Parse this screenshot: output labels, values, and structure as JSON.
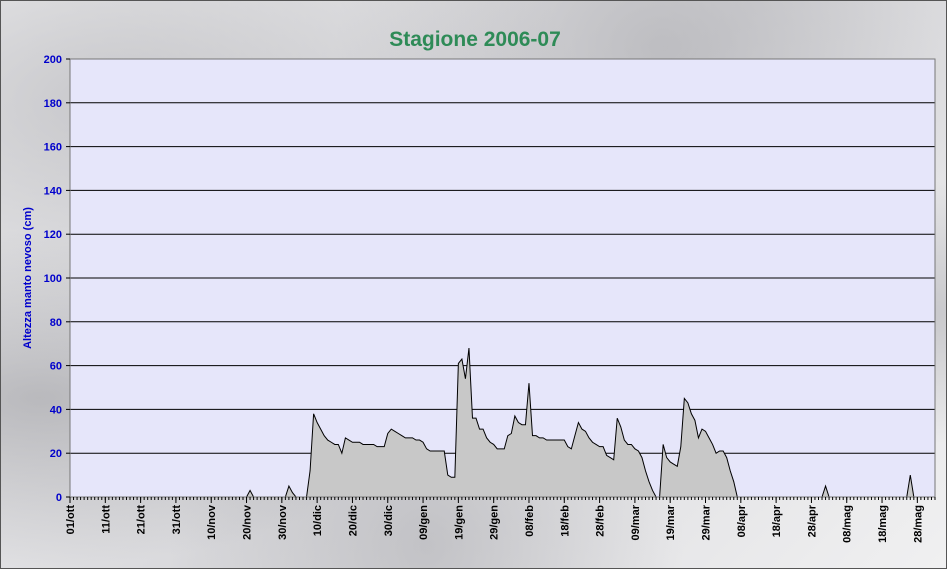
{
  "chart_data": {
    "type": "area",
    "title": "Stagione 2006-07",
    "xlabel": "",
    "ylabel": "Altezza manto nevoso (cm)",
    "ylim": [
      0,
      200
    ],
    "yticks": [
      0,
      20,
      40,
      60,
      80,
      100,
      120,
      140,
      160,
      180,
      200
    ],
    "xlim": [
      0,
      245
    ],
    "xticks": [
      {
        "day": 0,
        "label": "01/ott"
      },
      {
        "day": 10,
        "label": "11/ott"
      },
      {
        "day": 20,
        "label": "21/ott"
      },
      {
        "day": 30,
        "label": "31/ott"
      },
      {
        "day": 40,
        "label": "10/nov"
      },
      {
        "day": 50,
        "label": "20/nov"
      },
      {
        "day": 60,
        "label": "30/nov"
      },
      {
        "day": 70,
        "label": "10/dic"
      },
      {
        "day": 80,
        "label": "20/dic"
      },
      {
        "day": 90,
        "label": "30/dic"
      },
      {
        "day": 100,
        "label": "09/gen"
      },
      {
        "day": 110,
        "label": "19/gen"
      },
      {
        "day": 120,
        "label": "29/gen"
      },
      {
        "day": 130,
        "label": "08/feb"
      },
      {
        "day": 140,
        "label": "18/feb"
      },
      {
        "day": 150,
        "label": "28/feb"
      },
      {
        "day": 160,
        "label": "09/mar"
      },
      {
        "day": 170,
        "label": "19/mar"
      },
      {
        "day": 180,
        "label": "29/mar"
      },
      {
        "day": 190,
        "label": "08/apr"
      },
      {
        "day": 200,
        "label": "18/apr"
      },
      {
        "day": 210,
        "label": "28/apr"
      },
      {
        "day": 220,
        "label": "08/mag"
      },
      {
        "day": 230,
        "label": "18/mag"
      },
      {
        "day": 240,
        "label": "28/mag"
      }
    ],
    "grid": true,
    "colors": {
      "fill": "#c8c8c8",
      "line": "#000000",
      "plot_bg": "#e6e6fa",
      "grid": "#000000",
      "title": "#2e8b57",
      "ytick": "#0000cc"
    },
    "series": [
      {
        "x": [
          0,
          50,
          51,
          52,
          61,
          62,
          63,
          64,
          65,
          66,
          67,
          68,
          69,
          70,
          71,
          72,
          73,
          74,
          75,
          76,
          77,
          78,
          79,
          80,
          81,
          82,
          83,
          84,
          85,
          86,
          87,
          88,
          89,
          90,
          91,
          92,
          93,
          94,
          95,
          96,
          97,
          98,
          99,
          100,
          101,
          102,
          103,
          104,
          105,
          106,
          107,
          108,
          109,
          110,
          111,
          112,
          113,
          114,
          115,
          116,
          117,
          118,
          119,
          120,
          121,
          122,
          123,
          124,
          125,
          126,
          127,
          128,
          129,
          130,
          131,
          132,
          133,
          134,
          135,
          136,
          137,
          138,
          139,
          140,
          141,
          142,
          143,
          144,
          145,
          146,
          147,
          148,
          149,
          150,
          151,
          152,
          153,
          154,
          155,
          156,
          157,
          158,
          159,
          160,
          161,
          162,
          163,
          164,
          165,
          166,
          167,
          168,
          169,
          170,
          171,
          172,
          173,
          174,
          175,
          176,
          177,
          178,
          179,
          180,
          181,
          182,
          183,
          184,
          185,
          186,
          187,
          188,
          189,
          190,
          213,
          214,
          215,
          237,
          238,
          239,
          245
        ],
        "y": [
          0,
          0,
          3,
          0,
          0,
          5,
          2,
          0,
          0,
          0,
          0,
          12,
          38,
          34,
          31,
          28,
          26,
          25,
          24,
          24,
          20,
          27,
          26,
          25,
          25,
          25,
          24,
          24,
          24,
          24,
          23,
          23,
          23,
          29,
          31,
          30,
          29,
          28,
          27,
          27,
          27,
          26,
          26,
          25,
          22,
          21,
          21,
          21,
          21,
          21,
          10,
          9,
          9,
          61,
          63,
          54,
          68,
          36,
          36,
          31,
          31,
          27,
          25,
          24,
          22,
          22,
          22,
          28,
          29,
          37,
          34,
          33,
          33,
          52,
          28,
          28,
          27,
          27,
          26,
          26,
          26,
          26,
          26,
          26,
          23,
          22,
          28,
          34,
          31,
          30,
          27,
          25,
          24,
          23,
          23,
          19,
          18,
          17,
          36,
          32,
          26,
          24,
          24,
          22,
          21,
          18,
          12,
          7,
          3,
          0,
          0,
          24,
          18,
          16,
          15,
          14,
          23,
          45,
          43,
          38,
          35,
          27,
          31,
          30,
          27,
          24,
          20,
          21,
          21,
          18,
          12,
          7,
          0,
          0,
          0,
          5,
          0,
          0,
          10,
          0,
          0
        ]
      }
    ]
  }
}
